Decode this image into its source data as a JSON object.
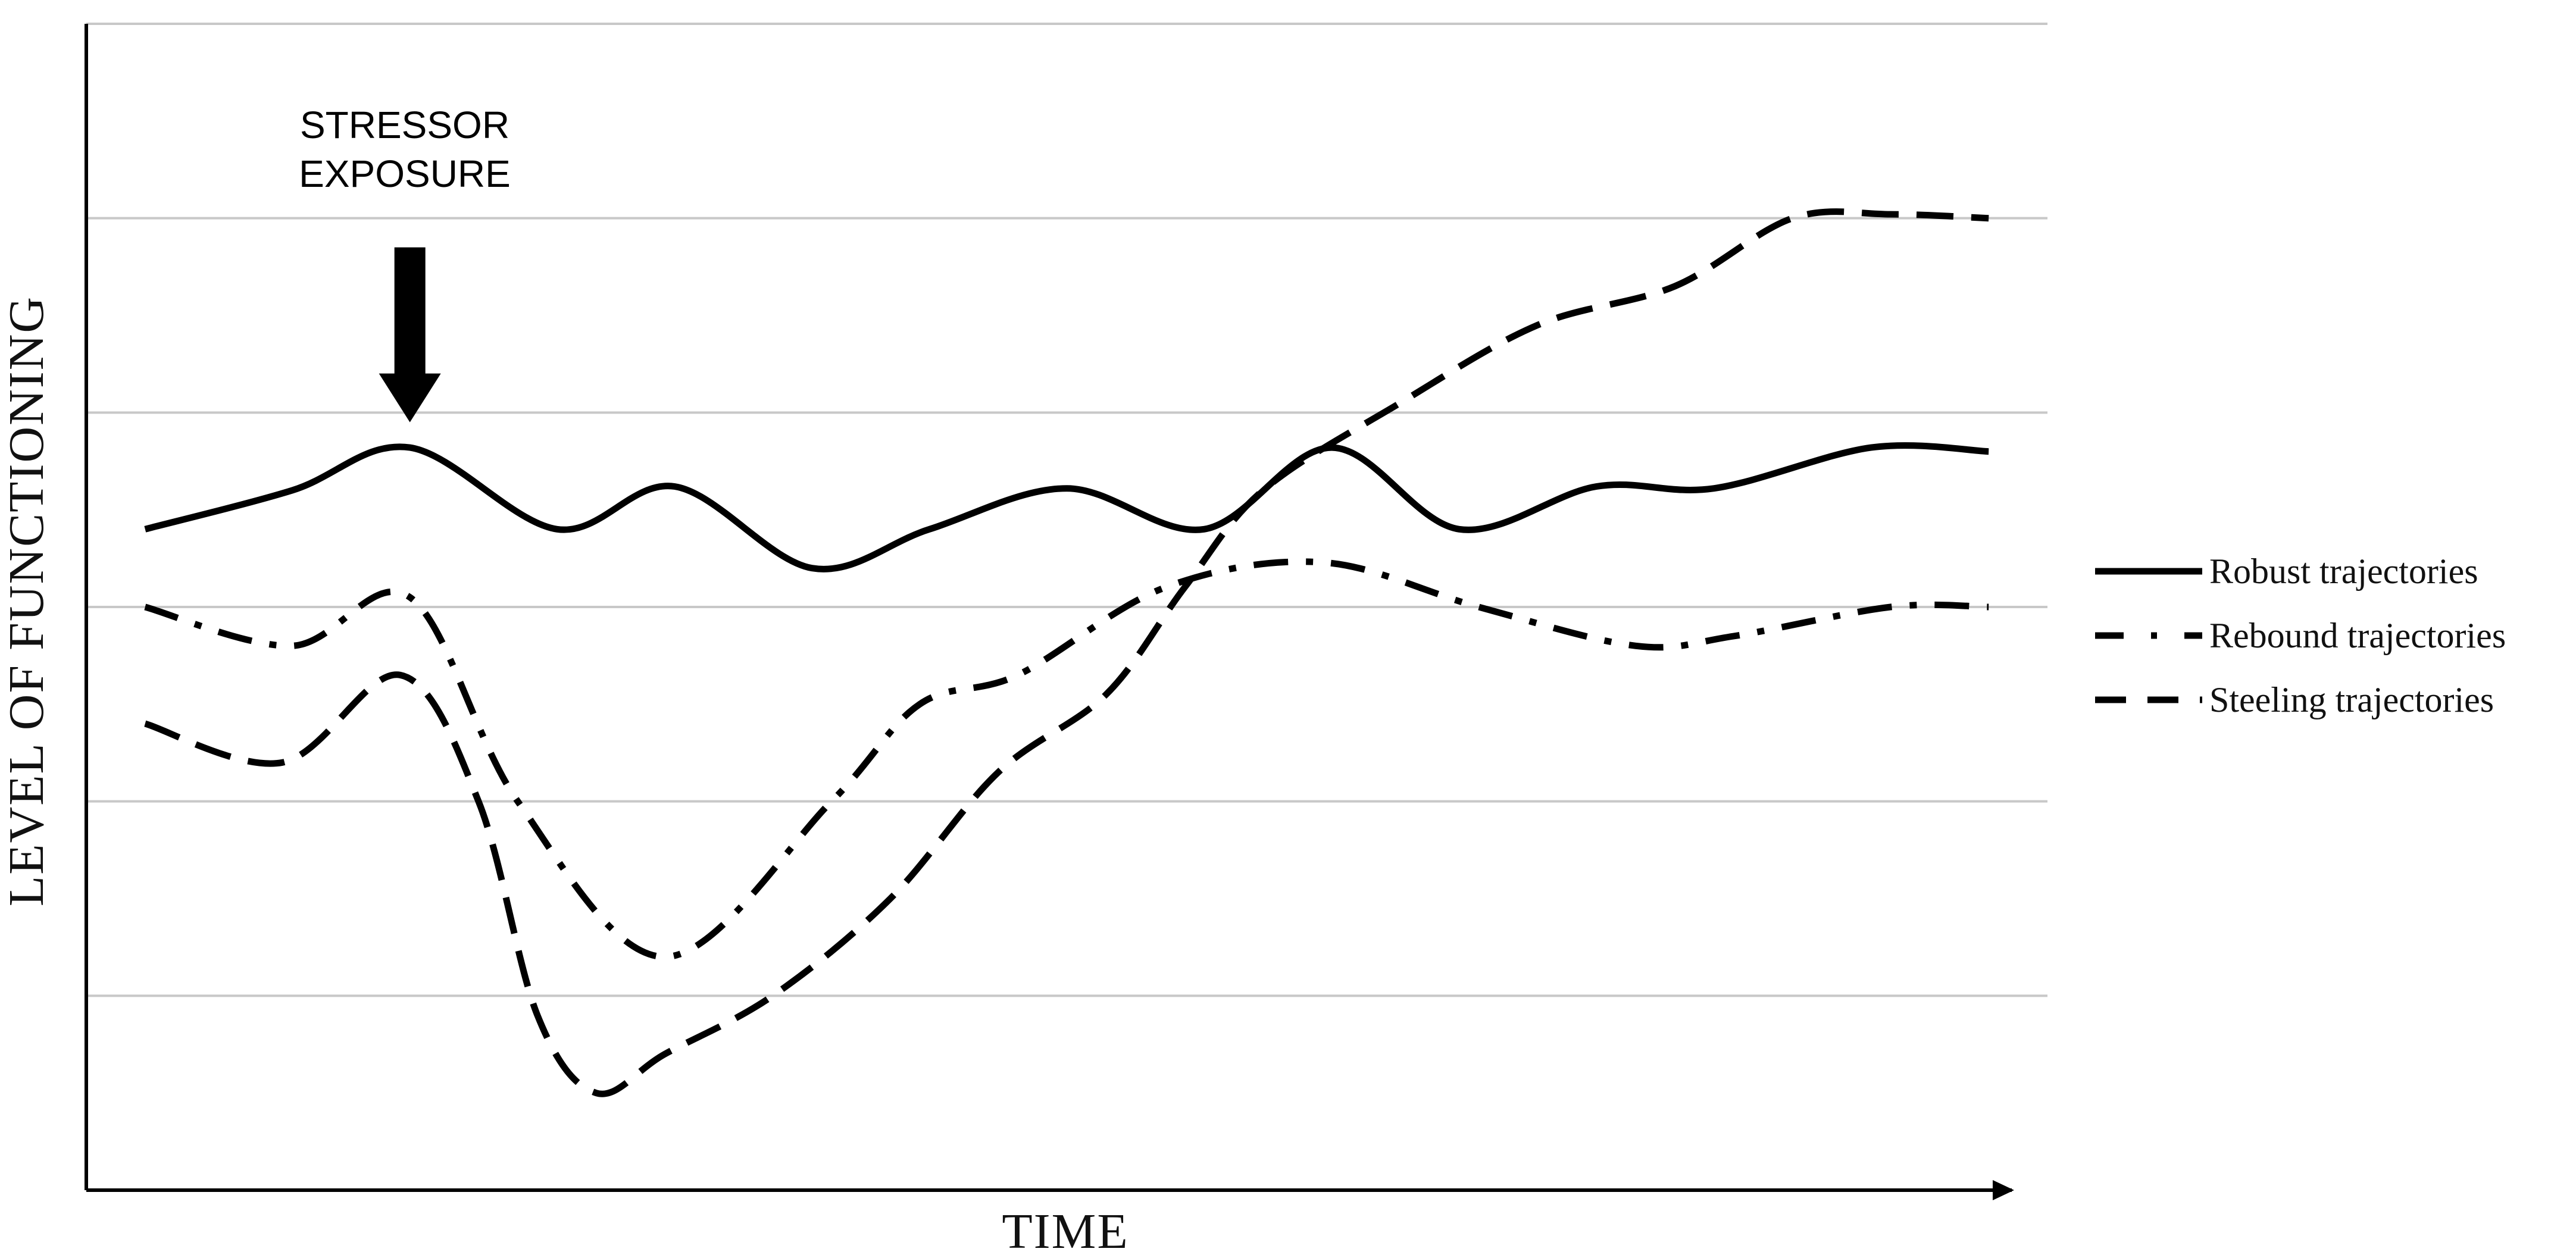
{
  "chart_data": {
    "type": "line",
    "xlabel": "TIME",
    "ylabel": "LEVEL OF FUNCTIONING",
    "title": "",
    "grid": true,
    "legend": "right",
    "xlim": [
      0,
      100
    ],
    "ylim": [
      0,
      6
    ],
    "annotation": {
      "label_lines": [
        "STRESSOR",
        "EXPOSURE"
      ],
      "x": 16.5,
      "arrow_top_y": 4.85,
      "arrow_bottom_y": 3.95
    },
    "series": [
      {
        "name": "Robust trajectories",
        "style": "solid",
        "points": [
          [
            3,
            3.4
          ],
          [
            10.5,
            3.6
          ],
          [
            16.5,
            3.82
          ],
          [
            24,
            3.4
          ],
          [
            30,
            3.62
          ],
          [
            37,
            3.2
          ],
          [
            43,
            3.4
          ],
          [
            50,
            3.61
          ],
          [
            57,
            3.4
          ],
          [
            63.5,
            3.82
          ],
          [
            70,
            3.4
          ],
          [
            77,
            3.62
          ],
          [
            83,
            3.61
          ],
          [
            91,
            3.82
          ],
          [
            97,
            3.8
          ]
        ]
      },
      {
        "name": "Rebound trajectories",
        "style": "dash-dot",
        "points": [
          [
            3,
            3.0
          ],
          [
            10.5,
            2.8
          ],
          [
            16.5,
            3.05
          ],
          [
            22,
            2.0
          ],
          [
            29.5,
            1.2
          ],
          [
            38,
            2.0
          ],
          [
            42.5,
            2.5
          ],
          [
            47.5,
            2.65
          ],
          [
            55,
            3.1
          ],
          [
            63,
            3.23
          ],
          [
            71,
            3.0
          ],
          [
            79,
            2.8
          ],
          [
            84,
            2.85
          ],
          [
            92,
            3.0
          ],
          [
            97,
            3.0
          ]
        ]
      },
      {
        "name": "Steeling trajectories",
        "style": "dashed",
        "points": [
          [
            3,
            2.4
          ],
          [
            10,
            2.2
          ],
          [
            16,
            2.65
          ],
          [
            20,
            2.0
          ],
          [
            23,
            0.9
          ],
          [
            26,
            0.5
          ],
          [
            29.5,
            0.7
          ],
          [
            35,
            1.0
          ],
          [
            41,
            1.5
          ],
          [
            46.5,
            2.15
          ],
          [
            52,
            2.55
          ],
          [
            56,
            3.1
          ],
          [
            60,
            3.6
          ],
          [
            67,
            4.05
          ],
          [
            74,
            4.45
          ],
          [
            81,
            4.65
          ],
          [
            87,
            5.0
          ],
          [
            92,
            5.02
          ],
          [
            97,
            5.0
          ]
        ]
      }
    ]
  }
}
